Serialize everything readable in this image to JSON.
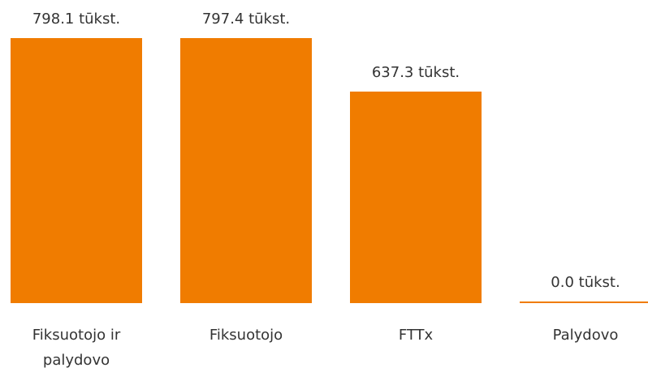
{
  "chart_data": {
    "type": "bar",
    "categories": [
      "Fiksuotojo ir palydovo",
      "Fiksuotojo",
      "FTTx",
      "Palydovo"
    ],
    "values": [
      798.1,
      797.4,
      637.3,
      0.0
    ],
    "value_labels": [
      "798.1 tūkst.",
      "797.4 tūkst.",
      "637.3 tūkst.",
      "0.0 tūkst."
    ],
    "color": "#f07c00"
  }
}
